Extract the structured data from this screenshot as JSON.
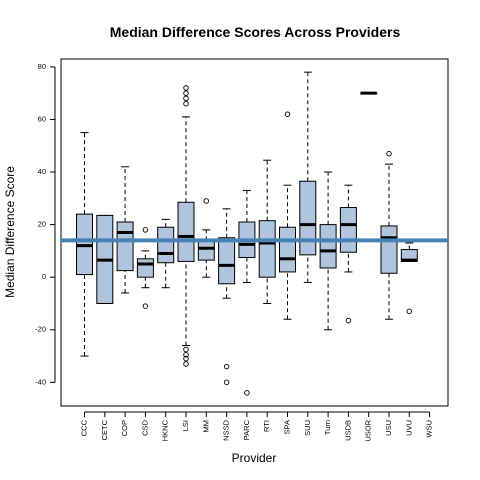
{
  "chart_data": {
    "type": "boxplot",
    "title": "Median Difference Scores Across Providers",
    "xlabel": "Provider",
    "ylabel": "Median Difference Score",
    "ylim": [
      -49,
      83
    ],
    "yticks": [
      -40,
      -20,
      0,
      20,
      40,
      60,
      80
    ],
    "grid": false,
    "box_color": "#b0c4de",
    "reference_line": {
      "value": 14,
      "color": "#4682b4"
    },
    "categories": [
      "CCC",
      "CETC",
      "COP",
      "CSD",
      "HKNC",
      "LSI",
      "MM",
      "NSSD",
      "PARC",
      "RTI",
      "SPA",
      "SUU",
      "Turn",
      "USDB",
      "USOR",
      "USU",
      "UVU",
      "WSU"
    ],
    "boxes": [
      {
        "category": "CCC",
        "whisker_low": -30,
        "q1": 1,
        "median": 12,
        "q3": 24,
        "whisker_high": 55,
        "outliers": []
      },
      {
        "category": "CETC",
        "whisker_low": -10,
        "q1": -10,
        "median": 6.5,
        "q3": 23.5,
        "whisker_high": 23.5,
        "outliers": []
      },
      {
        "category": "COP",
        "whisker_low": -6,
        "q1": 2.5,
        "median": 17,
        "q3": 21,
        "whisker_high": 42,
        "outliers": []
      },
      {
        "category": "CSD",
        "whisker_low": -4,
        "q1": 0,
        "median": 5,
        "q3": 7,
        "whisker_high": 10,
        "outliers": [
          18,
          -11
        ]
      },
      {
        "category": "HKNC",
        "whisker_low": -4,
        "q1": 5.5,
        "median": 9,
        "q3": 19,
        "whisker_high": 22,
        "outliers": []
      },
      {
        "category": "LSI",
        "whisker_low": -26,
        "q1": 6,
        "median": 15.5,
        "q3": 28.5,
        "whisker_high": 61,
        "outliers": [
          72,
          70,
          68,
          66,
          -27.5,
          -29.5,
          -31,
          -33
        ]
      },
      {
        "category": "MM",
        "whisker_low": 0,
        "q1": 6.5,
        "median": 11,
        "q3": 14,
        "whisker_high": 18,
        "outliers": [
          29
        ]
      },
      {
        "category": "NSSD",
        "whisker_low": -8,
        "q1": -2.5,
        "median": 4.5,
        "q3": 15,
        "whisker_high": 26,
        "outliers": [
          -34,
          -40
        ]
      },
      {
        "category": "PARC",
        "whisker_low": -2,
        "q1": 7.5,
        "median": 12.5,
        "q3": 21,
        "whisker_high": 33,
        "outliers": [
          -44
        ]
      },
      {
        "category": "RTI",
        "whisker_low": -10,
        "q1": 0,
        "median": 13,
        "q3": 21.5,
        "whisker_high": 44.5,
        "outliers": []
      },
      {
        "category": "SPA",
        "whisker_low": -16,
        "q1": 2,
        "median": 7,
        "q3": 19,
        "whisker_high": 35,
        "outliers": [
          62
        ]
      },
      {
        "category": "SUU",
        "whisker_low": -2,
        "q1": 8.5,
        "median": 20,
        "q3": 36.5,
        "whisker_high": 78,
        "outliers": []
      },
      {
        "category": "Turn",
        "whisker_low": -20,
        "q1": 3.5,
        "median": 10,
        "q3": 20,
        "whisker_high": 40,
        "outliers": []
      },
      {
        "category": "USDB",
        "whisker_low": 2,
        "q1": 9.5,
        "median": 20,
        "q3": 26.5,
        "whisker_high": 35,
        "outliers": [
          -16.5
        ]
      },
      {
        "category": "USOR",
        "whisker_low": 70,
        "q1": 70,
        "median": 70,
        "q3": 70,
        "whisker_high": 70,
        "outliers": []
      },
      {
        "category": "USU",
        "whisker_low": -16,
        "q1": 1.5,
        "median": 15,
        "q3": 19.5,
        "whisker_high": 43,
        "outliers": [
          47
        ]
      },
      {
        "category": "UVU",
        "whisker_low": 6,
        "q1": 6,
        "median": 6.5,
        "q3": 10.5,
        "whisker_high": 13,
        "outliers": [
          -13
        ]
      },
      {
        "category": "WSU",
        "whisker_low": null,
        "q1": null,
        "median": null,
        "q3": null,
        "whisker_high": null,
        "outliers": []
      }
    ]
  }
}
